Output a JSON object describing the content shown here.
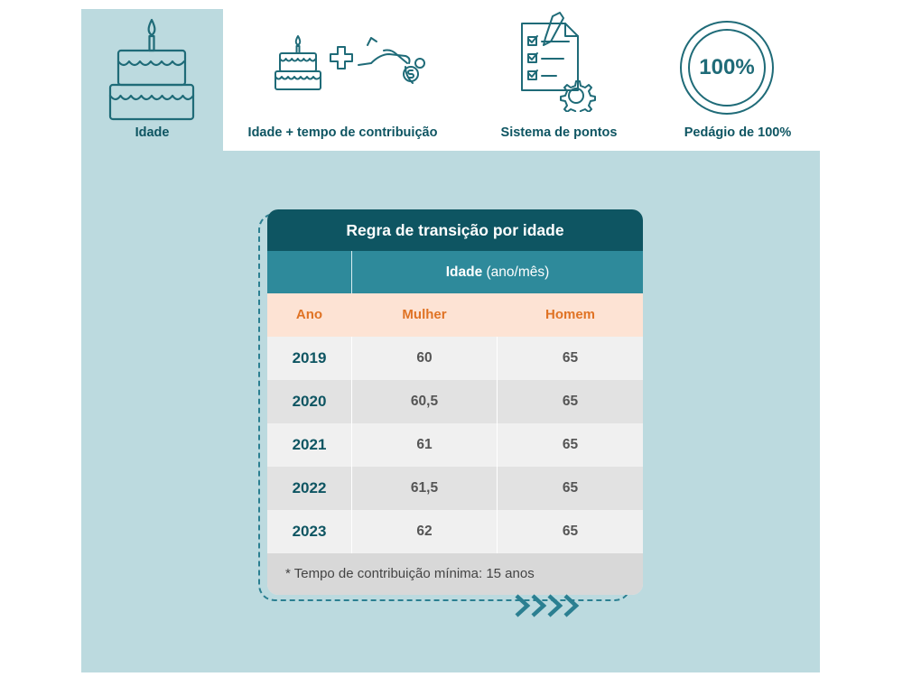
{
  "tabs": [
    {
      "label": "Idade",
      "icon": "birthday-cake-icon",
      "active": true
    },
    {
      "label": "Idade + tempo de contribuição",
      "icon": "cake-plus-coin-icon",
      "active": false
    },
    {
      "label": "Sistema de pontos",
      "icon": "checklist-gear-icon",
      "active": false
    },
    {
      "label": "Pedágio de 100%",
      "icon": "percent-circle-icon",
      "active": false,
      "badge": "100%"
    }
  ],
  "table": {
    "title": "Regra de transição por idade",
    "header_bold": "Idade",
    "header_unit": " (ano/mês)",
    "col_year": "Ano",
    "col_woman": "Mulher",
    "col_man": "Homem",
    "rows": [
      {
        "year": "2019",
        "woman": "60",
        "man": "65"
      },
      {
        "year": "2020",
        "woman": "60,5",
        "man": "65"
      },
      {
        "year": "2021",
        "woman": "61",
        "man": "65"
      },
      {
        "year": "2022",
        "woman": "61,5",
        "man": "65"
      },
      {
        "year": "2023",
        "woman": "62",
        "man": "65"
      }
    ],
    "note": "* Tempo de contribuição mínima: 15 anos"
  },
  "colors": {
    "accent": "#0e5562",
    "header": "#2e8a9b",
    "panel": "#bcdadf",
    "orange": "#e07325"
  }
}
